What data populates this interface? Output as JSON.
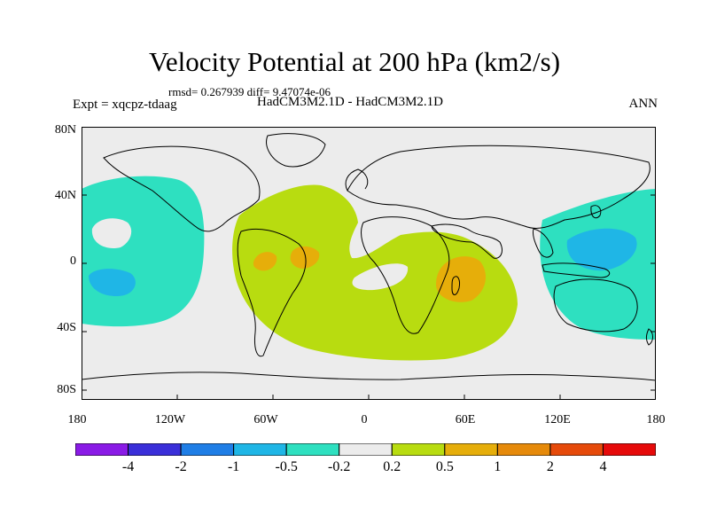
{
  "title": "Velocity Potential at 200 hPa (km2/s)",
  "stats": "rmsd= 0.267939 diff= 9.47074e-06",
  "expt_label": "Expt = xqcpz-tdaag",
  "model_label": "HadCM3M2.1D - HadCM3M2.1D",
  "season_label": "ANN",
  "y_ticks": [
    "80N",
    "40N",
    "0",
    "40S",
    "80S"
  ],
  "x_ticks": [
    "180",
    "120W",
    "60W",
    "0",
    "60E",
    "120E",
    "180"
  ],
  "colorbar": {
    "colors": [
      "#8a1be6",
      "#3a2fd9",
      "#1f7ee6",
      "#1fb6e6",
      "#2ee0c0",
      "#ececec",
      "#b8dc10",
      "#e6ae0a",
      "#e68a0a",
      "#e64a0a",
      "#e60a0a"
    ],
    "labels": [
      "-4",
      "-2",
      "-1",
      "-0.5",
      "-0.2",
      "0.2",
      "0.5",
      "1",
      "2",
      "4"
    ]
  },
  "colors": {
    "background_field": "#ececec",
    "negative_moderate": "#2ee0c0",
    "negative_strong": "#1fb6e6",
    "positive_moderate": "#b8dc10",
    "positive_strong": "#e6ae0a"
  }
}
